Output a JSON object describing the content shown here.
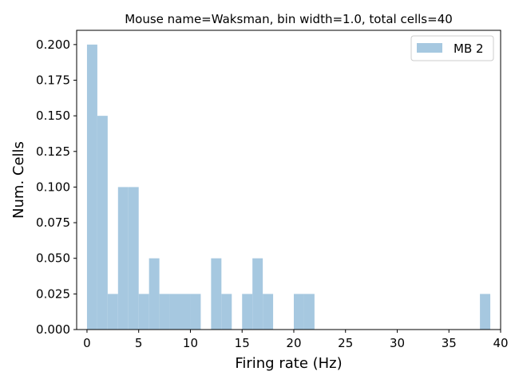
{
  "chart_data": {
    "type": "bar",
    "title": "Mouse name=Waksman, bin width=1.0, total cells=40",
    "xlabel": "Firing rate (Hz)",
    "ylabel": "Num. Cells",
    "xlim": [
      -1.0,
      40.0
    ],
    "ylim": [
      0,
      0.21
    ],
    "xticks": [
      0,
      5,
      10,
      15,
      20,
      25,
      30,
      35,
      40
    ],
    "xtick_labels": [
      "0",
      "5",
      "10",
      "15",
      "20",
      "25",
      "30",
      "35",
      "40"
    ],
    "yticks": [
      0.0,
      0.025,
      0.05,
      0.075,
      0.1,
      0.125,
      0.15,
      0.175,
      0.2
    ],
    "ytick_labels": [
      "0.000",
      "0.025",
      "0.050",
      "0.075",
      "0.100",
      "0.125",
      "0.150",
      "0.175",
      "0.200"
    ],
    "grid": false,
    "legend_position": "top-right",
    "bin_width": 1.0,
    "series": [
      {
        "name": "MB 2",
        "color": "#a6c8e0",
        "bins": [
          {
            "x0": 0,
            "value": 0.2
          },
          {
            "x0": 1,
            "value": 0.15
          },
          {
            "x0": 2,
            "value": 0.025
          },
          {
            "x0": 3,
            "value": 0.1
          },
          {
            "x0": 4,
            "value": 0.1
          },
          {
            "x0": 5,
            "value": 0.025
          },
          {
            "x0": 6,
            "value": 0.05
          },
          {
            "x0": 7,
            "value": 0.025
          },
          {
            "x0": 8,
            "value": 0.025
          },
          {
            "x0": 9,
            "value": 0.025
          },
          {
            "x0": 10,
            "value": 0.025
          },
          {
            "x0": 12,
            "value": 0.05
          },
          {
            "x0": 13,
            "value": 0.025
          },
          {
            "x0": 15,
            "value": 0.025
          },
          {
            "x0": 16,
            "value": 0.05
          },
          {
            "x0": 17,
            "value": 0.025
          },
          {
            "x0": 20,
            "value": 0.025
          },
          {
            "x0": 21,
            "value": 0.025
          },
          {
            "x0": 38,
            "value": 0.025
          }
        ]
      }
    ]
  }
}
